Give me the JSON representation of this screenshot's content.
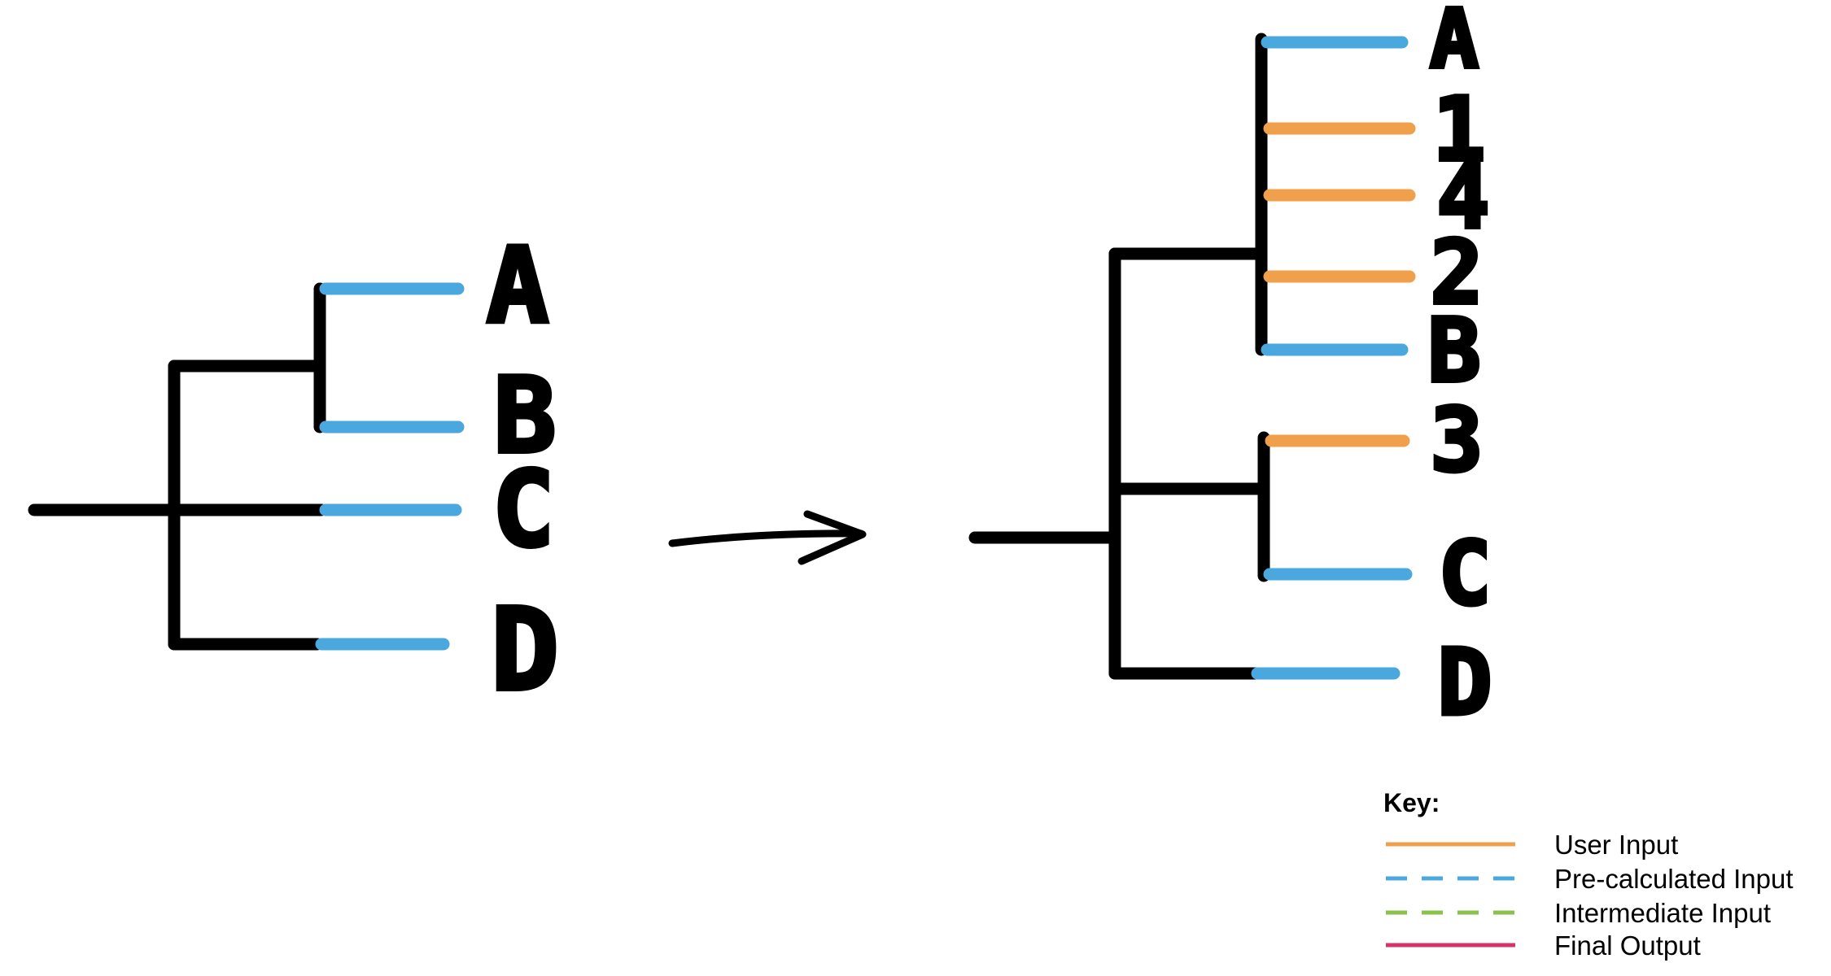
{
  "colors": {
    "user_input": "#F0A04B",
    "pre_calculated": "#4AA8DE",
    "intermediate": "#8BC34A",
    "final_output": "#D6336C",
    "tree": "#000000"
  },
  "left_tree": {
    "leaves": [
      {
        "label": "A",
        "type": "pre_calculated"
      },
      {
        "label": "B",
        "type": "pre_calculated"
      },
      {
        "label": "C",
        "type": "pre_calculated"
      },
      {
        "label": "D",
        "type": "pre_calculated"
      }
    ]
  },
  "right_tree": {
    "leaves": [
      {
        "label": "A",
        "type": "pre_calculated"
      },
      {
        "label": "1",
        "type": "user_input"
      },
      {
        "label": "4",
        "type": "user_input"
      },
      {
        "label": "2",
        "type": "user_input"
      },
      {
        "label": "B",
        "type": "pre_calculated"
      },
      {
        "label": "3",
        "type": "user_input"
      },
      {
        "label": "C",
        "type": "pre_calculated"
      },
      {
        "label": "D",
        "type": "pre_calculated"
      }
    ]
  },
  "key": {
    "title": "Key:",
    "items": [
      {
        "label": "User Input",
        "type": "user_input",
        "style": "solid"
      },
      {
        "label": "Pre-calculated Input",
        "type": "pre_calculated",
        "style": "dashed"
      },
      {
        "label": "Intermediate Input",
        "type": "intermediate",
        "style": "dashed"
      },
      {
        "label": "Final Output",
        "type": "final_output",
        "style": "solid"
      }
    ]
  }
}
